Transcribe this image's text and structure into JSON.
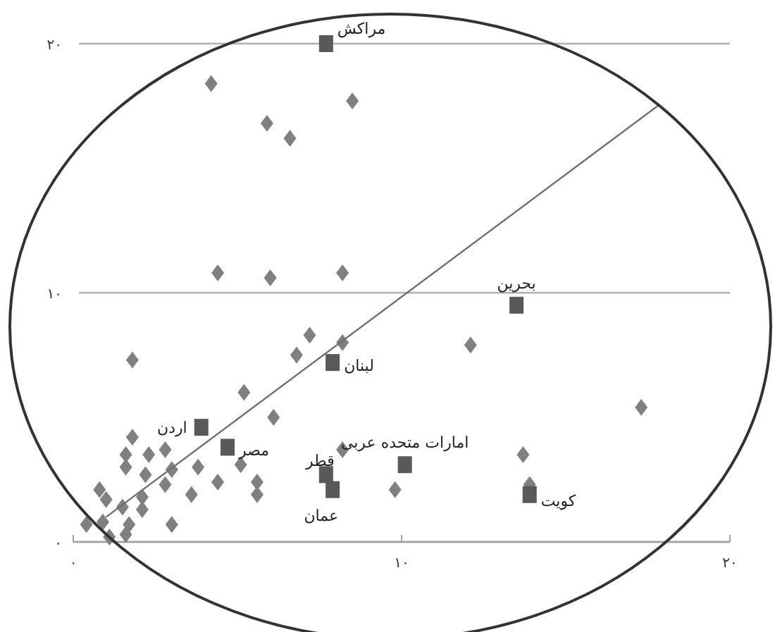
{
  "chart_data": {
    "type": "scatter",
    "xlim": [
      0,
      20
    ],
    "ylim": [
      0,
      20
    ],
    "xticks": [
      {
        "value": 0,
        "label": "۰"
      },
      {
        "value": 10,
        "label": "۱۰"
      },
      {
        "value": 20,
        "label": "۲۰"
      }
    ],
    "yticks": [
      {
        "value": 0,
        "label": "۰"
      },
      {
        "value": 10,
        "label": "۱۰"
      },
      {
        "value": 20,
        "label": "۲۰"
      }
    ],
    "grid": "y",
    "series": [
      {
        "marker": "diamond",
        "color": "#808080",
        "x": [
          4.2,
          8.5,
          5.9,
          6.6,
          4.4,
          6.0,
          8.2,
          1.8,
          7.2,
          6.8,
          8.2,
          12.1,
          17.3,
          5.2,
          6.1,
          13.7,
          13.9,
          8.2,
          9.8,
          1.8,
          1.6,
          2.3,
          2.8,
          1.6,
          3.0,
          3.8,
          2.2,
          2.8,
          4.4,
          5.1,
          3.6,
          5.6,
          5.6,
          2.1,
          2.1,
          1.5,
          0.8,
          1.0,
          0.4,
          0.9,
          1.6,
          1.1,
          3.0,
          1.7
        ],
        "values": [
          18.4,
          17.7,
          16.8,
          16.2,
          10.8,
          10.6,
          10.8,
          7.3,
          8.3,
          7.5,
          8.0,
          7.9,
          5.4,
          6.0,
          5.0,
          3.5,
          2.3,
          3.7,
          2.1,
          4.2,
          3.5,
          3.5,
          3.7,
          3.0,
          2.9,
          3.0,
          2.7,
          2.3,
          2.4,
          3.1,
          1.9,
          2.4,
          1.9,
          1.8,
          1.3,
          1.4,
          2.1,
          1.7,
          0.7,
          0.8,
          0.3,
          0.2,
          0.7,
          0.7
        ]
      },
      {
        "marker": "square",
        "color": "#595959",
        "x": [
          7.7,
          13.5,
          7.9,
          3.9,
          4.7,
          7.7,
          7.9,
          10.1,
          13.9
        ],
        "values": [
          20.0,
          9.5,
          7.2,
          4.6,
          3.8,
          2.7,
          2.1,
          3.1,
          1.9
        ]
      },
      {
        "type": "line",
        "color": "#707070",
        "x": [
          1.0,
          17.8
        ],
        "values": [
          1.0,
          17.5
        ]
      }
    ],
    "annotations": [
      {
        "text": "مراکش",
        "x": 7.7,
        "y": 20.0
      },
      {
        "text": "بحرین",
        "x": 13.5,
        "y": 9.5
      },
      {
        "text": "لبنان",
        "x": 7.9,
        "y": 7.2
      },
      {
        "text": "اردن",
        "x": 3.9,
        "y": 4.6
      },
      {
        "text": "مصر",
        "x": 4.7,
        "y": 3.8
      },
      {
        "text": "قطر",
        "x": 7.7,
        "y": 2.7
      },
      {
        "text": "عمان",
        "x": 7.9,
        "y": 2.1
      },
      {
        "text": "امارات متحده عربی",
        "x": 10.1,
        "y": 3.1
      },
      {
        "text": "کویت",
        "x": 13.9,
        "y": 1.9
      }
    ]
  }
}
